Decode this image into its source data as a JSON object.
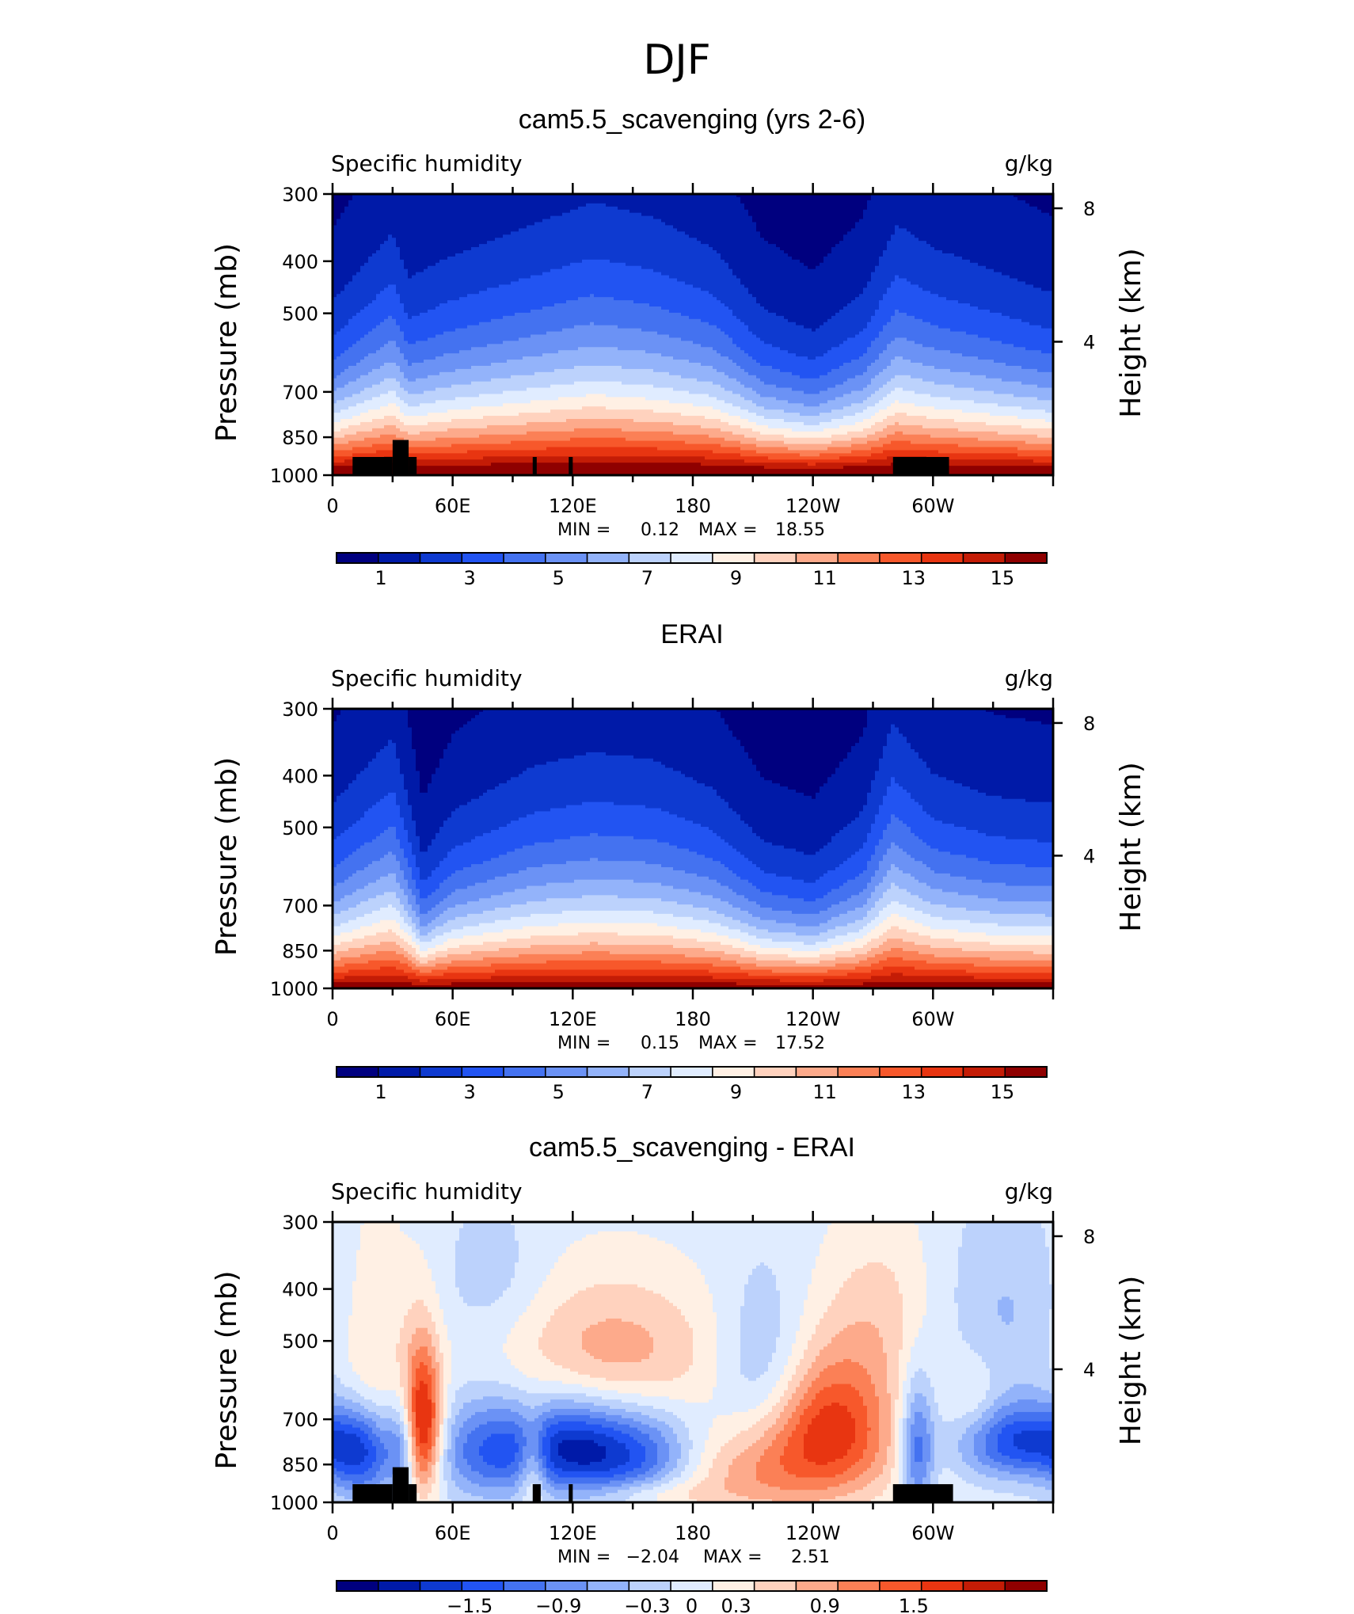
{
  "figure": {
    "title": "DJF"
  },
  "chart_data": [
    {
      "type": "heatmap",
      "title": "cam5.5_scavenging (yrs 2-6)",
      "variable": "Specific humidity",
      "units": "g/kg",
      "xlabel": "",
      "ylabel": "Pressure (mb)",
      "ylabel_right": "Height (km)",
      "x_tick_labels": [
        "0",
        "60E",
        "120E",
        "180",
        "120W",
        "60W"
      ],
      "x_ticks_deg": [
        0,
        60,
        120,
        180,
        240,
        300
      ],
      "xlim_deg": [
        0,
        360
      ],
      "y_tick_labels": [
        "300",
        "400",
        "500",
        "700",
        "850",
        "1000"
      ],
      "y_ticks": [
        300,
        400,
        500,
        700,
        850,
        1000
      ],
      "ylim": [
        1000,
        300
      ],
      "y_scale": "log",
      "right_tick_labels": [
        "8",
        "4"
      ],
      "right_ticks_km": [
        8,
        4
      ],
      "min_label": "MIN =",
      "min_value": "0.12",
      "max_label": "MAX =",
      "max_value": "18.55",
      "colorbar": {
        "colors": [
          "#00007f",
          "#001aa8",
          "#0e3ad0",
          "#2254f2",
          "#4472f0",
          "#6b92f5",
          "#93b3fa",
          "#bcd2fc",
          "#e0ecff",
          "#fff0e4",
          "#ffd2be",
          "#fdaa8b",
          "#fb8056",
          "#f7582b",
          "#e83511",
          "#c41c06",
          "#8f0000"
        ],
        "tick_labels": [
          "1",
          "3",
          "5",
          "7",
          "9",
          "11",
          "13",
          "15"
        ],
        "tick_levels": [
          1,
          3,
          5,
          7,
          9,
          11,
          13,
          15
        ],
        "levels_min": 0,
        "levels_max": 16
      },
      "field": {
        "kind": "humidity",
        "surface_value": 16.8,
        "upper_value": 0.4,
        "tropics_moisture_km": [
          [
            0,
            2.3
          ],
          [
            30,
            3.2
          ],
          [
            38,
            2.6
          ],
          [
            60,
            2.9
          ],
          [
            100,
            3.3
          ],
          [
            130,
            3.6
          ],
          [
            160,
            3.4
          ],
          [
            190,
            3.0
          ],
          [
            215,
            2.2
          ],
          [
            240,
            1.9
          ],
          [
            265,
            2.4
          ],
          [
            282,
            3.3
          ],
          [
            300,
            3.0
          ],
          [
            330,
            2.7
          ],
          [
            360,
            2.4
          ]
        ]
      },
      "topography_mb": [
        {
          "lon_start": 10,
          "lon_end": 30,
          "top": 925
        },
        {
          "lon_start": 30,
          "lon_end": 38,
          "top": 860
        },
        {
          "lon_start": 38,
          "lon_end": 42,
          "top": 925
        },
        {
          "lon_start": 100,
          "lon_end": 102,
          "top": 925
        },
        {
          "lon_start": 118,
          "lon_end": 120,
          "top": 925
        },
        {
          "lon_start": 280,
          "lon_end": 308,
          "top": 925
        }
      ]
    },
    {
      "type": "heatmap",
      "title": "ERAI",
      "variable": "Specific humidity",
      "units": "g/kg",
      "xlabel": "",
      "ylabel": "Pressure (mb)",
      "ylabel_right": "Height (km)",
      "x_tick_labels": [
        "0",
        "60E",
        "120E",
        "180",
        "120W",
        "60W"
      ],
      "x_ticks_deg": [
        0,
        60,
        120,
        180,
        240,
        300
      ],
      "xlim_deg": [
        0,
        360
      ],
      "y_tick_labels": [
        "300",
        "400",
        "500",
        "700",
        "850",
        "1000"
      ],
      "y_ticks": [
        300,
        400,
        500,
        700,
        850,
        1000
      ],
      "ylim": [
        1000,
        300
      ],
      "y_scale": "log",
      "right_tick_labels": [
        "8",
        "4"
      ],
      "right_ticks_km": [
        8,
        4
      ],
      "min_label": "MIN =",
      "min_value": "0.15",
      "max_label": "MAX =",
      "max_value": "17.52",
      "colorbar": {
        "colors": [
          "#00007f",
          "#001aa8",
          "#0e3ad0",
          "#2254f2",
          "#4472f0",
          "#6b92f5",
          "#93b3fa",
          "#bcd2fc",
          "#e0ecff",
          "#fff0e4",
          "#ffd2be",
          "#fdaa8b",
          "#fb8056",
          "#f7582b",
          "#e83511",
          "#c41c06",
          "#8f0000"
        ],
        "tick_labels": [
          "1",
          "3",
          "5",
          "7",
          "9",
          "11",
          "13",
          "15"
        ],
        "tick_levels": [
          1,
          3,
          5,
          7,
          9,
          11,
          13,
          15
        ],
        "levels_min": 0,
        "levels_max": 16
      },
      "field": {
        "kind": "humidity",
        "surface_value": 16.0,
        "upper_value": 0.4,
        "tropics_moisture_km": [
          [
            0,
            2.5
          ],
          [
            30,
            3.4
          ],
          [
            45,
            1.8
          ],
          [
            60,
            2.4
          ],
          [
            100,
            3.0
          ],
          [
            130,
            3.2
          ],
          [
            160,
            3.1
          ],
          [
            190,
            2.7
          ],
          [
            215,
            2.0
          ],
          [
            240,
            1.8
          ],
          [
            265,
            2.4
          ],
          [
            280,
            3.6
          ],
          [
            300,
            2.9
          ],
          [
            330,
            2.6
          ],
          [
            360,
            2.5
          ]
        ]
      },
      "topography_mb": []
    },
    {
      "type": "heatmap",
      "title": "cam5.5_scavenging - ERAI",
      "variable": "Specific humidity",
      "units": "g/kg",
      "xlabel": "",
      "ylabel": "Pressure (mb)",
      "ylabel_right": "Height (km)",
      "x_tick_labels": [
        "0",
        "60E",
        "120E",
        "180",
        "120W",
        "60W"
      ],
      "x_ticks_deg": [
        0,
        60,
        120,
        180,
        240,
        300
      ],
      "xlim_deg": [
        0,
        360
      ],
      "y_tick_labels": [
        "300",
        "400",
        "500",
        "700",
        "850",
        "1000"
      ],
      "y_ticks": [
        300,
        400,
        500,
        700,
        850,
        1000
      ],
      "ylim": [
        1000,
        300
      ],
      "y_scale": "log",
      "right_tick_labels": [
        "8",
        "4"
      ],
      "right_ticks_km": [
        8,
        4
      ],
      "min_label": "MIN =",
      "min_value": "−2.04",
      "max_label": "MAX =",
      "max_value": "2.51",
      "colorbar": {
        "colors": [
          "#00007f",
          "#001aa8",
          "#0e3ad0",
          "#2254f2",
          "#4472f0",
          "#6b92f5",
          "#93b3fa",
          "#bcd2fc",
          "#e0ecff",
          "#fff0e4",
          "#ffd2be",
          "#fdaa8b",
          "#fb8056",
          "#f7582b",
          "#e83511",
          "#c41c06",
          "#8f0000"
        ],
        "tick_labels": [
          "−1.5",
          "−0.9",
          "−0.3",
          "0",
          "0.3",
          "0.9",
          "1.5"
        ],
        "tick_levels": [
          -1.5,
          -0.9,
          -0.3,
          0,
          0.3,
          0.9,
          1.5
        ],
        "levels_min": -2.4,
        "levels_max": 2.4
      },
      "field": {
        "kind": "difference",
        "anomalies": [
          {
            "lon": 45,
            "p": 720,
            "amp": 2.1,
            "dlon": 7,
            "dp": 160
          },
          {
            "lon": 20,
            "p": 600,
            "amp": 0.55,
            "dlon": 14,
            "dp": 220
          },
          {
            "lon": 15,
            "p": 820,
            "amp": -1.4,
            "dlon": 12,
            "dp": 120
          },
          {
            "lon": 35,
            "p": 780,
            "amp": -0.9,
            "dlon": 5,
            "dp": 120
          },
          {
            "lon": 80,
            "p": 800,
            "amp": -1.3,
            "dlon": 20,
            "dp": 120
          },
          {
            "lon": 118,
            "p": 790,
            "amp": -1.3,
            "dlon": 17,
            "dp": 110
          },
          {
            "lon": 150,
            "p": 820,
            "amp": -1.5,
            "dlon": 22,
            "dp": 110
          },
          {
            "lon": 140,
            "p": 520,
            "amp": 0.85,
            "dlon": 38,
            "dp": 110
          },
          {
            "lon": 100,
            "p": 850,
            "amp": 0.9,
            "dlon": 5,
            "dp": 110
          },
          {
            "lon": 220,
            "p": 880,
            "amp": 0.95,
            "dlon": 40,
            "dp": 130
          },
          {
            "lon": 250,
            "p": 700,
            "amp": 1.45,
            "dlon": 22,
            "dp": 140
          },
          {
            "lon": 215,
            "p": 560,
            "amp": -0.6,
            "dlon": 16,
            "dp": 140
          },
          {
            "lon": 275,
            "p": 440,
            "amp": 0.5,
            "dlon": 22,
            "dp": 120
          },
          {
            "lon": 292,
            "p": 800,
            "amp": -1.3,
            "dlon": 6,
            "dp": 160
          },
          {
            "lon": 345,
            "p": 770,
            "amp": -1.6,
            "dlon": 22,
            "dp": 90
          },
          {
            "lon": 335,
            "p": 440,
            "amp": -0.45,
            "dlon": 24,
            "dp": 130
          },
          {
            "lon": 320,
            "p": 640,
            "amp": 0.4,
            "dlon": 10,
            "dp": 80
          },
          {
            "lon": 80,
            "p": 380,
            "amp": -0.35,
            "dlon": 18,
            "dp": 80
          },
          {
            "lon": 160,
            "p": 960,
            "amp": 0.4,
            "dlon": 20,
            "dp": 40
          }
        ]
      },
      "topography_mb": [
        {
          "lon_start": 10,
          "lon_end": 30,
          "top": 925
        },
        {
          "lon_start": 30,
          "lon_end": 38,
          "top": 860
        },
        {
          "lon_start": 38,
          "lon_end": 42,
          "top": 925
        },
        {
          "lon_start": 100,
          "lon_end": 104,
          "top": 925
        },
        {
          "lon_start": 118,
          "lon_end": 120,
          "top": 925
        },
        {
          "lon_start": 280,
          "lon_end": 310,
          "top": 925
        }
      ]
    }
  ]
}
